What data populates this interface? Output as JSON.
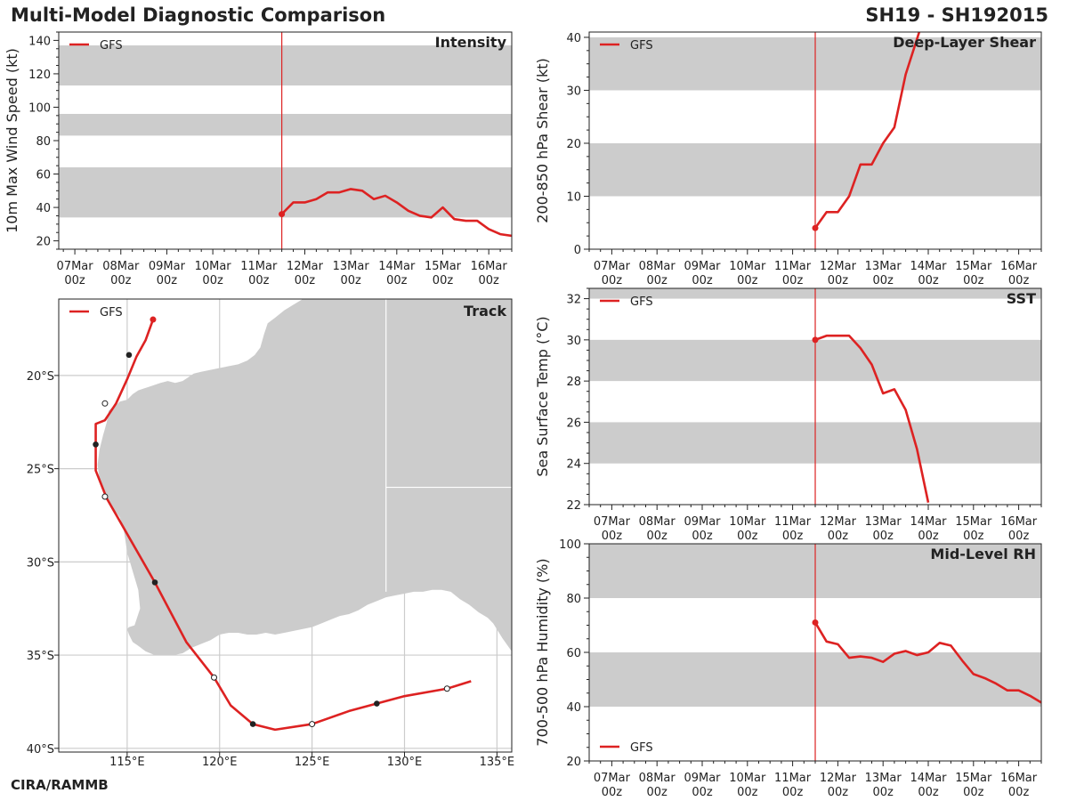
{
  "header": {
    "title": "Multi-Model Diagnostic Comparison",
    "storm_id": "SH19 - SH192015"
  },
  "footer": {
    "credit": "CIRA/RAMMB"
  },
  "colors": {
    "model_line": "#dd2222",
    "band": "#cccccc",
    "land": "#cccccc",
    "axis": "#222222",
    "grid": "#cccccc",
    "dot_dark": "#222222",
    "dot_open": "#ffffff"
  },
  "chart_data": [
    {
      "id": "intensity",
      "type": "line",
      "title": "Intensity",
      "ylabel": "10m Max Wind Speed (kt)",
      "legend": "GFS",
      "legend_position": "top-left",
      "categories": [
        "07Mar\n00z",
        "08Mar\n00z",
        "09Mar\n00z",
        "10Mar\n00z",
        "11Mar\n00z",
        "12Mar\n00z",
        "13Mar\n00z",
        "14Mar\n00z",
        "15Mar\n00z",
        "16Mar\n00z"
      ],
      "xlim": [
        -0.35,
        9.5
      ],
      "ylim": [
        15,
        145
      ],
      "yticks": [
        20,
        40,
        60,
        80,
        100,
        120,
        140
      ],
      "bands": [
        [
          34,
          64
        ],
        [
          83,
          96
        ],
        [
          113,
          137
        ]
      ],
      "init_time": 4.5,
      "series": [
        {
          "name": "GFS",
          "x": [
            4.5,
            4.75,
            5.0,
            5.25,
            5.5,
            5.75,
            6.0,
            6.25,
            6.5,
            6.75,
            7.0,
            7.25,
            7.5,
            7.75,
            8.0,
            8.25,
            8.5,
            8.75,
            9.0,
            9.25,
            9.5
          ],
          "y": [
            36,
            43,
            43,
            45,
            49,
            49,
            51,
            50,
            45,
            47,
            43,
            38,
            35,
            34,
            40,
            33,
            32,
            32,
            27,
            24,
            23
          ]
        }
      ]
    },
    {
      "id": "shear",
      "type": "line",
      "title": "Deep-Layer Shear",
      "ylabel": "200-850 hPa Shear (kt)",
      "legend": "GFS",
      "legend_position": "top-left",
      "categories": [
        "07Mar\n00z",
        "08Mar\n00z",
        "09Mar\n00z",
        "10Mar\n00z",
        "11Mar\n00z",
        "12Mar\n00z",
        "13Mar\n00z",
        "14Mar\n00z",
        "15Mar\n00z",
        "16Mar\n00z"
      ],
      "xlim": [
        -0.5,
        9.5
      ],
      "ylim": [
        0,
        41
      ],
      "yticks": [
        0,
        10,
        20,
        30,
        40
      ],
      "bands": [
        [
          10,
          20
        ],
        [
          30,
          40
        ]
      ],
      "init_time": 4.5,
      "series": [
        {
          "name": "GFS",
          "x": [
            4.5,
            4.75,
            5.0,
            5.25,
            5.5,
            5.75,
            6.0,
            6.25,
            6.5,
            6.8
          ],
          "y": [
            4,
            7,
            7,
            10,
            16,
            16,
            20,
            23,
            33,
            41
          ]
        }
      ]
    },
    {
      "id": "sst",
      "type": "line",
      "title": "SST",
      "ylabel": "Sea Surface Temp (°C)",
      "legend": "GFS",
      "legend_position": "top-left",
      "categories": [
        "07Mar\n00z",
        "08Mar\n00z",
        "09Mar\n00z",
        "10Mar\n00z",
        "11Mar\n00z",
        "12Mar\n00z",
        "13Mar\n00z",
        "14Mar\n00z",
        "15Mar\n00z",
        "16Mar\n00z"
      ],
      "xlim": [
        -0.5,
        9.5
      ],
      "ylim": [
        22,
        32.5
      ],
      "yticks": [
        22,
        24,
        26,
        28,
        30,
        32
      ],
      "bands": [
        [
          24,
          26
        ],
        [
          28,
          30
        ],
        [
          32,
          34
        ]
      ],
      "init_time": 4.5,
      "series": [
        {
          "name": "GFS",
          "x": [
            4.5,
            4.75,
            5.0,
            5.25,
            5.5,
            5.75,
            6.0,
            6.25,
            6.5,
            6.75,
            7.0
          ],
          "y": [
            30.0,
            30.2,
            30.2,
            30.2,
            29.6,
            28.8,
            27.4,
            27.6,
            26.6,
            24.7,
            22.1
          ]
        }
      ]
    },
    {
      "id": "rh",
      "type": "line",
      "title": "Mid-Level RH",
      "ylabel": "700-500 hPa Humidity (%)",
      "legend": "GFS",
      "legend_position": "bottom-left",
      "categories": [
        "07Mar\n00z",
        "08Mar\n00z",
        "09Mar\n00z",
        "10Mar\n00z",
        "11Mar\n00z",
        "12Mar\n00z",
        "13Mar\n00z",
        "14Mar\n00z",
        "15Mar\n00z",
        "16Mar\n00z"
      ],
      "xlim": [
        -0.5,
        9.5
      ],
      "ylim": [
        20,
        100
      ],
      "yticks": [
        20,
        40,
        60,
        80,
        100
      ],
      "bands": [
        [
          40,
          60
        ],
        [
          80,
          100
        ]
      ],
      "init_time": 4.5,
      "series": [
        {
          "name": "GFS",
          "x": [
            4.5,
            4.75,
            5.0,
            5.25,
            5.5,
            5.75,
            6.0,
            6.25,
            6.5,
            6.75,
            7.0,
            7.25,
            7.5,
            7.75,
            8.0,
            8.25,
            8.5,
            8.75,
            9.0,
            9.25,
            9.5
          ],
          "y": [
            71,
            64,
            63,
            58,
            58.5,
            58,
            56.5,
            59.5,
            60.5,
            59,
            60,
            63.5,
            62.5,
            57,
            52,
            50.5,
            48.5,
            46,
            46,
            44,
            41.5
          ]
        }
      ]
    },
    {
      "id": "track",
      "type": "scatter",
      "title": "Track",
      "legend": "GFS",
      "legend_position": "top-left",
      "xlim": [
        111.3,
        135.8
      ],
      "ylim": [
        -40.2,
        -15.9
      ],
      "xticks": [
        115,
        120,
        125,
        130,
        135
      ],
      "xtick_labels": [
        "115°E",
        "120°E",
        "125°E",
        "130°E",
        "135°E"
      ],
      "yticks": [
        -20,
        -25,
        -30,
        -35,
        -40
      ],
      "ytick_labels": [
        "20°S",
        "25°S",
        "30°S",
        "35°S",
        "40°S"
      ],
      "series": [
        {
          "name": "GFS",
          "lon": [
            116.4,
            116.0,
            115.5,
            115.0,
            114.4,
            113.8,
            113.3,
            113.3,
            113.3,
            113.9,
            115.0,
            116.5,
            118.2,
            119.7,
            120.6,
            121.8,
            123.0,
            125.0,
            127.0,
            128.5,
            130.0,
            132.3,
            133.6
          ],
          "lat": [
            -17.0,
            -18.1,
            -19.0,
            -20.2,
            -21.5,
            -22.4,
            -22.6,
            -23.7,
            -25.1,
            -26.6,
            -28.5,
            -31.1,
            -34.3,
            -36.2,
            -37.7,
            -38.7,
            -39.0,
            -38.7,
            -38.0,
            -37.6,
            -37.2,
            -36.8,
            -36.4
          ]
        }
      ],
      "markers": [
        {
          "lon": 116.4,
          "lat": -17.0,
          "style": "start"
        },
        {
          "lon": 115.1,
          "lat": -18.9,
          "style": "filled"
        },
        {
          "lon": 113.8,
          "lat": -21.5,
          "style": "open"
        },
        {
          "lon": 113.3,
          "lat": -23.7,
          "style": "filled"
        },
        {
          "lon": 113.8,
          "lat": -26.5,
          "style": "open"
        },
        {
          "lon": 116.5,
          "lat": -31.1,
          "style": "filled"
        },
        {
          "lon": 119.7,
          "lat": -36.2,
          "style": "open"
        },
        {
          "lon": 121.8,
          "lat": -38.7,
          "style": "filled"
        },
        {
          "lon": 125.0,
          "lat": -38.7,
          "style": "open"
        },
        {
          "lon": 128.5,
          "lat": -37.6,
          "style": "filled"
        },
        {
          "lon": 132.3,
          "lat": -36.8,
          "style": "open"
        }
      ],
      "land_outline": {
        "lon": [
          114.0,
          114.2,
          114.4,
          114.6,
          115.0,
          115.3,
          115.6,
          115.9,
          116.2,
          116.5,
          116.8,
          117.2,
          117.6,
          118.0,
          118.3,
          118.6,
          119.0,
          119.5,
          120.0,
          120.5,
          121.0,
          121.5,
          121.9,
          122.2,
          122.4,
          122.6,
          123.0,
          123.5,
          124.0,
          124.5,
          125.0,
          125.5,
          126.0,
          126.5,
          127.0,
          127.5,
          128.0,
          128.5,
          129.0,
          129.5,
          130.0,
          130.5,
          131.0,
          131.5,
          132.0,
          132.5,
          133.0,
          133.5,
          134.0,
          134.5,
          135.0,
          135.8,
          135.8,
          135.3,
          134.8,
          134.5,
          134.0,
          133.5,
          133.0,
          132.5,
          132.0,
          131.5,
          131.0,
          130.5,
          130.0,
          129.5,
          129.0,
          128.5,
          128.0,
          127.5,
          127.0,
          126.5,
          126.0,
          125.5,
          125.0,
          124.5,
          124.0,
          123.5,
          123.0,
          122.5,
          122.0,
          121.5,
          121.0,
          120.5,
          120.0,
          119.5,
          119.0,
          118.5,
          118.0,
          117.5,
          117.0,
          116.5,
          116.0,
          115.6,
          115.3,
          115.1,
          115.0,
          115.1,
          115.4,
          115.7,
          115.6,
          115.3,
          115.0,
          114.9,
          114.8,
          114.6,
          114.3,
          114.0,
          113.8,
          113.6,
          113.5,
          113.4,
          113.5,
          113.7,
          113.9,
          114.0
        ],
        "lat": [
          -21.9,
          -21.7,
          -21.6,
          -21.4,
          -21.3,
          -21.0,
          -20.8,
          -20.7,
          -20.6,
          -20.5,
          -20.4,
          -20.3,
          -20.4,
          -20.3,
          -20.1,
          -19.9,
          -19.8,
          -19.7,
          -19.6,
          -19.5,
          -19.4,
          -19.2,
          -18.9,
          -18.5,
          -17.8,
          -17.2,
          -16.9,
          -16.5,
          -16.2,
          -15.9,
          -15.9,
          -15.9,
          -15.9,
          -15.9,
          -15.9,
          -15.9,
          -15.9,
          -15.9,
          -15.9,
          -15.9,
          -15.9,
          -15.9,
          -15.9,
          -15.9,
          -15.9,
          -15.9,
          -15.9,
          -15.9,
          -15.9,
          -15.9,
          -15.9,
          -15.9,
          -34.8,
          -34.1,
          -33.3,
          -33.0,
          -32.7,
          -32.3,
          -32.0,
          -31.6,
          -31.5,
          -31.5,
          -31.6,
          -31.6,
          -31.7,
          -31.8,
          -31.9,
          -32.1,
          -32.3,
          -32.6,
          -32.8,
          -32.9,
          -33.1,
          -33.3,
          -33.5,
          -33.6,
          -33.7,
          -33.8,
          -33.9,
          -33.8,
          -33.9,
          -33.9,
          -33.8,
          -33.8,
          -33.9,
          -34.2,
          -34.4,
          -34.6,
          -34.9,
          -35.0,
          -35.0,
          -35.0,
          -34.8,
          -34.5,
          -34.3,
          -33.9,
          -33.6,
          -33.5,
          -33.4,
          -32.5,
          -31.5,
          -30.5,
          -29.5,
          -28.8,
          -28.2,
          -27.6,
          -27.2,
          -26.8,
          -26.3,
          -25.9,
          -25.5,
          -24.8,
          -24.0,
          -23.2,
          -22.5,
          -21.9
        ]
      },
      "borders": [
        {
          "lon": [
            129.0,
            129.0
          ],
          "lat": [
            -15.9,
            -31.6
          ]
        },
        {
          "lon": [
            129.0,
            135.8
          ],
          "lat": [
            -26.0,
            -26.0
          ]
        }
      ]
    }
  ]
}
